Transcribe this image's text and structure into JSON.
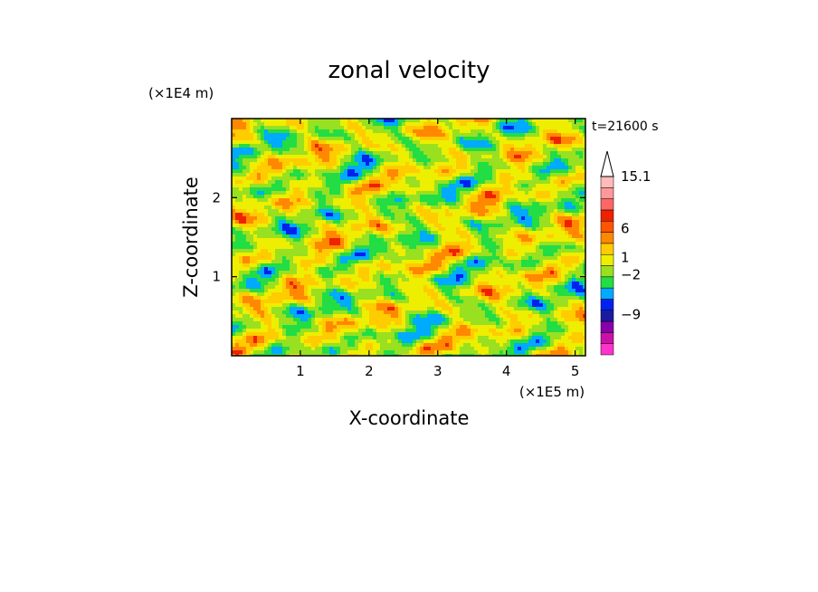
{
  "chart_data": {
    "type": "heatmap",
    "title": "zonal velocity",
    "xlabel": "X-coordinate",
    "ylabel": "Z-coordinate",
    "x_unit": "(×1E5 m)",
    "y_unit": "(×1E4 m)",
    "time_label": "t=21600 s",
    "xlim": [
      0,
      5.15
    ],
    "ylim": [
      0,
      3.0
    ],
    "x_ticks": [
      "1",
      "2",
      "3",
      "4",
      "5"
    ],
    "x_tick_values": [
      1,
      2,
      3,
      4,
      5
    ],
    "y_ticks": [
      "1",
      "2"
    ],
    "y_tick_values": [
      1,
      2
    ],
    "colorbar": {
      "labels": [
        "15.1",
        "6",
        "1",
        "−2",
        "−9"
      ],
      "levels": [
        15.1,
        6,
        1,
        -2,
        -9
      ],
      "colors": [
        "#ff33cc",
        "#cc11aa",
        "#8800aa",
        "#1a1aa0",
        "#0022ee",
        "#00aaff",
        "#22dd44",
        "#99e020",
        "#eeee00",
        "#ffcc00",
        "#ff8800",
        "#ff5500",
        "#ee2200",
        "#ff6666",
        "#ff9999",
        "#ffbbbb"
      ],
      "extend_max": true
    },
    "grid": false
  }
}
